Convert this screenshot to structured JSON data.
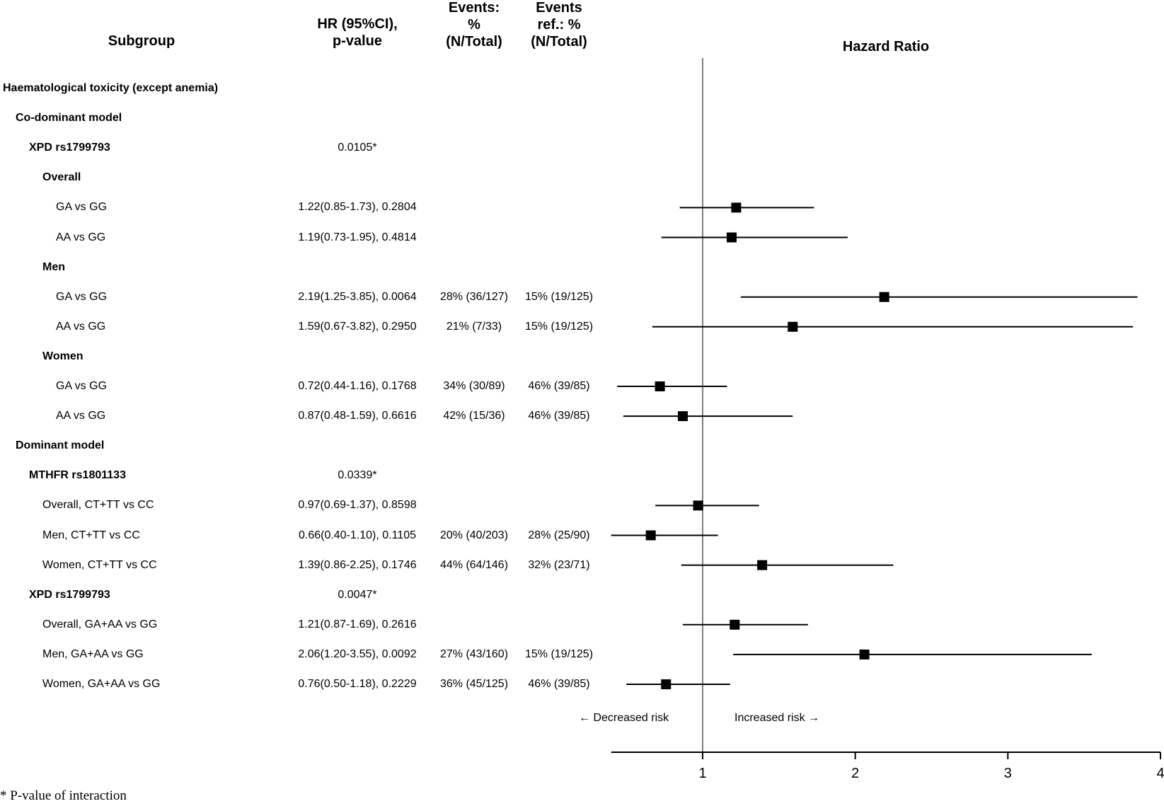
{
  "headers": {
    "subgroup": "Subgroup",
    "hr_line1": "HR (95%CI),",
    "hr_line2": "p-value",
    "events_line1": "Events:",
    "events_line2": "%",
    "events_line3": "(N/Total)",
    "eventsref_line1": "Events",
    "eventsref_line2": "ref.: %",
    "eventsref_line3": "(N/Total)"
  },
  "rows": [
    {
      "label": "Haematological toxicity (except anemia)",
      "bold": true,
      "indent": 0,
      "hr": "",
      "events": "",
      "ref": ""
    },
    {
      "label": "Co-dominant model",
      "bold": true,
      "indent": 1,
      "hr": "",
      "events": "",
      "ref": ""
    },
    {
      "label": "XPD rs1799793",
      "bold": true,
      "indent": 2,
      "hr": "0.0105*",
      "events": "",
      "ref": ""
    },
    {
      "label": "Overall",
      "bold": true,
      "indent": 3,
      "hr": "",
      "events": "",
      "ref": ""
    },
    {
      "label": "GA vs GG",
      "bold": false,
      "indent": 4,
      "hr": "1.22(0.85-1.73), 0.2804",
      "events": "",
      "ref": ""
    },
    {
      "label": "AA vs GG",
      "bold": false,
      "indent": 4,
      "hr": "1.19(0.73-1.95), 0.4814",
      "events": "",
      "ref": ""
    },
    {
      "label": "Men",
      "bold": true,
      "indent": 3,
      "hr": "",
      "events": "",
      "ref": ""
    },
    {
      "label": "GA vs GG",
      "bold": false,
      "indent": 4,
      "hr": "2.19(1.25-3.85), 0.0064",
      "events": "28% (36/127)",
      "ref": "15% (19/125)"
    },
    {
      "label": "AA vs GG",
      "bold": false,
      "indent": 4,
      "hr": "1.59(0.67-3.82), 0.2950",
      "events": "21% (7/33)",
      "ref": "15% (19/125)"
    },
    {
      "label": "Women",
      "bold": true,
      "indent": 3,
      "hr": "",
      "events": "",
      "ref": ""
    },
    {
      "label": "GA vs GG",
      "bold": false,
      "indent": 4,
      "hr": "0.72(0.44-1.16), 0.1768",
      "events": "34% (30/89)",
      "ref": "46% (39/85)"
    },
    {
      "label": "AA vs GG",
      "bold": false,
      "indent": 4,
      "hr": "0.87(0.48-1.59), 0.6616",
      "events": "42% (15/36)",
      "ref": "46% (39/85)"
    },
    {
      "label": "Dominant model",
      "bold": true,
      "indent": 1,
      "hr": "",
      "events": "",
      "ref": ""
    },
    {
      "label": "MTHFR rs1801133",
      "bold": true,
      "indent": 2,
      "hr": "0.0339*",
      "events": "",
      "ref": ""
    },
    {
      "label": "Overall, CT+TT vs CC",
      "bold": false,
      "indent": 3,
      "hr": "0.97(0.69-1.37), 0.8598",
      "events": "",
      "ref": ""
    },
    {
      "label": "Men, CT+TT vs CC",
      "bold": false,
      "indent": 3,
      "hr": "0.66(0.40-1.10), 0.1105",
      "events": "20% (40/203)",
      "ref": "28% (25/90)"
    },
    {
      "label": "Women, CT+TT vs CC",
      "bold": false,
      "indent": 3,
      "hr": "1.39(0.86-2.25), 0.1746",
      "events": "44% (64/146)",
      "ref": "32% (23/71)"
    },
    {
      "label": "XPD rs1799793",
      "bold": true,
      "indent": 2,
      "hr": "0.0047*",
      "events": "",
      "ref": ""
    },
    {
      "label": "Overall, GA+AA vs GG",
      "bold": false,
      "indent": 3,
      "hr": "1.21(0.87-1.69), 0.2616",
      "events": "",
      "ref": ""
    },
    {
      "label": "Men, GA+AA vs GG",
      "bold": false,
      "indent": 3,
      "hr": "2.06(1.20-3.55), 0.0092",
      "events": "27% (43/160)",
      "ref": "15% (19/125)"
    },
    {
      "label": "Women, GA+AA vs GG",
      "bold": false,
      "indent": 3,
      "hr": "0.76(0.50-1.18), 0.2229",
      "events": "36% (45/125)",
      "ref": "46% (39/85)"
    }
  ],
  "direction": {
    "left": "← Decreased risk",
    "right": "Increased risk →"
  },
  "footnote": "* P-value of interaction",
  "colors": {
    "marker": "#000000",
    "reference_line": "#7f7f7f",
    "axis": "#000000"
  },
  "chart_data": {
    "type": "forest",
    "title": "Hazard Ratio",
    "xlabel": "",
    "xlim": [
      0.4,
      4
    ],
    "xticks": [
      1,
      2,
      3,
      4
    ],
    "reference_value": 1,
    "series": [
      {
        "row": 4,
        "name": "XPD Overall GA vs GG",
        "hr": 1.22,
        "lo": 0.85,
        "hi": 1.73
      },
      {
        "row": 5,
        "name": "XPD Overall AA vs GG",
        "hr": 1.19,
        "lo": 0.73,
        "hi": 1.95
      },
      {
        "row": 7,
        "name": "XPD Men GA vs GG",
        "hr": 2.19,
        "lo": 1.25,
        "hi": 3.85
      },
      {
        "row": 8,
        "name": "XPD Men AA vs GG",
        "hr": 1.59,
        "lo": 0.67,
        "hi": 3.82
      },
      {
        "row": 10,
        "name": "XPD Women GA vs GG",
        "hr": 0.72,
        "lo": 0.44,
        "hi": 1.16
      },
      {
        "row": 11,
        "name": "XPD Women AA vs GG",
        "hr": 0.87,
        "lo": 0.48,
        "hi": 1.59
      },
      {
        "row": 14,
        "name": "MTHFR Overall CT+TT vs CC",
        "hr": 0.97,
        "lo": 0.69,
        "hi": 1.37
      },
      {
        "row": 15,
        "name": "MTHFR Men CT+TT vs CC",
        "hr": 0.66,
        "lo": 0.4,
        "hi": 1.1
      },
      {
        "row": 16,
        "name": "MTHFR Women CT+TT vs CC",
        "hr": 1.39,
        "lo": 0.86,
        "hi": 2.25
      },
      {
        "row": 18,
        "name": "XPD Overall GA+AA vs GG",
        "hr": 1.21,
        "lo": 0.87,
        "hi": 1.69
      },
      {
        "row": 19,
        "name": "XPD Men GA+AA vs GG",
        "hr": 2.06,
        "lo": 1.2,
        "hi": 3.55
      },
      {
        "row": 20,
        "name": "XPD Women GA+AA vs GG",
        "hr": 0.76,
        "lo": 0.5,
        "hi": 1.18
      }
    ]
  }
}
